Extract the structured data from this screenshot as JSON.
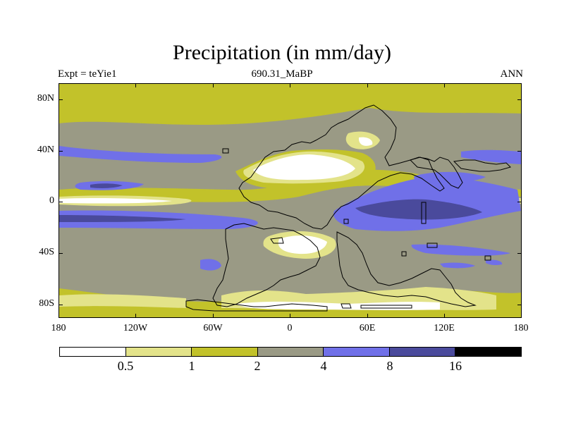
{
  "title": "Precipitation (in mm/day)",
  "subtitle": {
    "left": "Expt = teYie1",
    "center": "690.31_MaBP",
    "right": "ANN"
  },
  "axes": {
    "y_labels": [
      "80N",
      "40N",
      "0",
      "40S",
      "80S"
    ],
    "x_labels": [
      "180",
      "120W",
      "60W",
      "0",
      "60E",
      "120E",
      "180"
    ]
  },
  "colorbar": {
    "colors": [
      "#ffffff",
      "#e3e38a",
      "#c2c22a",
      "#9a9a85",
      "#7070e8",
      "#4a4a9c",
      "#000000"
    ],
    "labels": [
      "0.5",
      "1",
      "2",
      "4",
      "8",
      "16"
    ]
  },
  "chart_data": {
    "type": "heatmap",
    "title": "Precipitation (in mm/day)",
    "variable": "precipitation",
    "units": "mm/day",
    "contour_levels": [
      0.5,
      1,
      2,
      4,
      8,
      16
    ],
    "xlim": [
      -180,
      180
    ],
    "ylim": [
      -90,
      90
    ],
    "x_ticks": [
      "180",
      "120W",
      "60W",
      "0",
      "60E",
      "120E",
      "180"
    ],
    "y_ticks": [
      "80N",
      "40N",
      "0",
      "40S",
      "80S"
    ]
  }
}
